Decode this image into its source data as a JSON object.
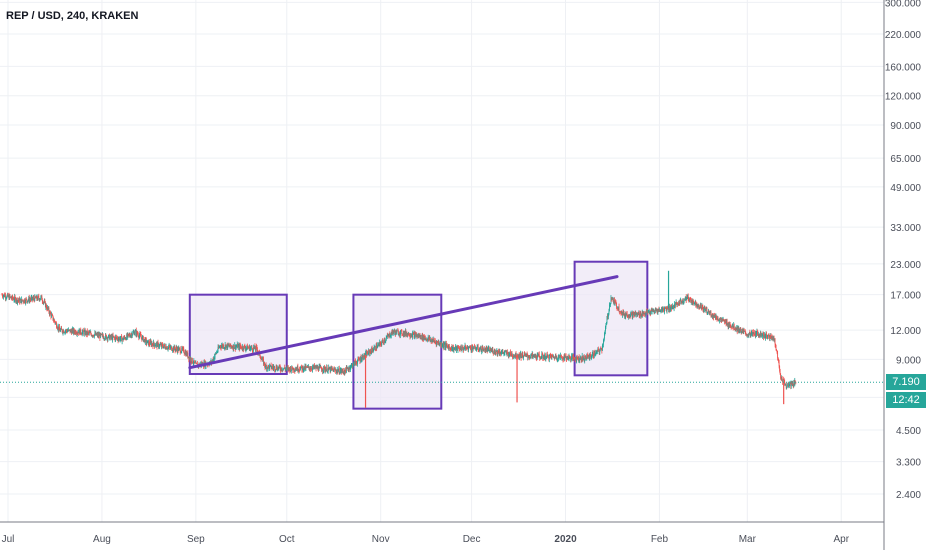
{
  "header": {
    "title": "REP / USD, 240, KRAKEN"
  },
  "price_badge": {
    "value": "7.190",
    "color": "#26a69a"
  },
  "timer_badge": {
    "value": "12:42",
    "color": "#26a69a"
  },
  "chart_data": {
    "type": "candlestick",
    "title": "REP / USD, 240, KRAKEN",
    "y_scale": "log",
    "y_ticks": [
      "300.000",
      "220.000",
      "160.000",
      "120.000",
      "90.000",
      "65.000",
      "49.000",
      "33.000",
      "23.000",
      "17.000",
      "12.000",
      "9.000",
      "6.200",
      "4.500",
      "3.300",
      "2.400"
    ],
    "x_ticks": [
      {
        "date": "2019-07-01",
        "label": "Jul"
      },
      {
        "date": "2019-08-01",
        "label": "Aug"
      },
      {
        "date": "2019-09-01",
        "label": "Sep"
      },
      {
        "date": "2019-10-01",
        "label": "Oct"
      },
      {
        "date": "2019-11-01",
        "label": "Nov"
      },
      {
        "date": "2019-12-01",
        "label": "Dec"
      },
      {
        "date": "2020-01-01",
        "label": "2020"
      },
      {
        "date": "2020-02-01",
        "label": "Feb"
      },
      {
        "date": "2020-03-01",
        "label": "Mar"
      },
      {
        "date": "2020-04-01",
        "label": "Apr"
      }
    ],
    "current_price": 7.19,
    "price_path": [
      [
        "2019-06-29",
        17.0
      ],
      [
        "2019-07-05",
        16.0
      ],
      [
        "2019-07-12",
        16.5
      ],
      [
        "2019-07-18",
        12.0
      ],
      [
        "2019-07-25",
        11.8
      ],
      [
        "2019-08-01",
        11.3
      ],
      [
        "2019-08-08",
        11.0
      ],
      [
        "2019-08-12",
        11.8
      ],
      [
        "2019-08-16",
        10.6
      ],
      [
        "2019-08-22",
        10.2
      ],
      [
        "2019-08-28",
        9.8
      ],
      [
        "2019-09-01",
        8.5
      ],
      [
        "2019-09-06",
        8.7
      ],
      [
        "2019-09-09",
        10.3
      ],
      [
        "2019-09-15",
        10.2
      ],
      [
        "2019-09-21",
        10.0
      ],
      [
        "2019-09-24",
        8.4
      ],
      [
        "2019-10-01",
        8.2
      ],
      [
        "2019-10-10",
        8.3
      ],
      [
        "2019-10-20",
        8.0
      ],
      [
        "2019-10-25",
        9.0
      ],
      [
        "2019-11-01",
        10.5
      ],
      [
        "2019-11-05",
        11.8
      ],
      [
        "2019-11-10",
        11.6
      ],
      [
        "2019-11-15",
        11.2
      ],
      [
        "2019-11-20",
        10.6
      ],
      [
        "2019-11-25",
        10.0
      ],
      [
        "2019-12-01",
        10.1
      ],
      [
        "2019-12-10",
        9.7
      ],
      [
        "2019-12-15",
        9.4
      ],
      [
        "2019-12-20",
        9.3
      ],
      [
        "2019-12-31",
        9.2
      ],
      [
        "2020-01-07",
        9.1
      ],
      [
        "2020-01-10",
        9.4
      ],
      [
        "2020-01-13",
        10.0
      ],
      [
        "2020-01-16",
        16.5
      ],
      [
        "2020-01-20",
        14.0
      ],
      [
        "2020-01-25",
        14.0
      ],
      [
        "2020-01-31",
        14.5
      ],
      [
        "2020-02-05",
        15.0
      ],
      [
        "2020-02-10",
        16.5
      ],
      [
        "2020-02-15",
        15.0
      ],
      [
        "2020-02-20",
        13.5
      ],
      [
        "2020-02-25",
        12.5
      ],
      [
        "2020-03-01",
        11.5
      ],
      [
        "2020-03-05",
        11.6
      ],
      [
        "2020-03-10",
        11.0
      ],
      [
        "2020-03-12",
        7.6
      ],
      [
        "2020-03-14",
        6.9
      ],
      [
        "2020-03-17",
        7.19
      ]
    ],
    "spikes": [
      {
        "date": "2019-10-27",
        "low": 5.6
      },
      {
        "date": "2019-12-16",
        "low": 5.9
      },
      {
        "date": "2020-02-04",
        "high": 21.5
      },
      {
        "date": "2020-03-13",
        "low": 5.8
      }
    ],
    "annotations": {
      "boxes": [
        {
          "start": "2019-08-30",
          "end": "2019-10-01",
          "low": 7.8,
          "high": 17.0
        },
        {
          "start": "2019-10-23",
          "end": "2019-11-21",
          "low": 5.55,
          "high": 17.0
        },
        {
          "start": "2020-01-04",
          "end": "2020-01-28",
          "low": 7.7,
          "high": 23.5
        }
      ],
      "trendline": {
        "start_date": "2019-08-30",
        "start_price": 8.3,
        "end_date": "2020-01-18",
        "end_price": 20.3
      },
      "price_line": 7.19
    },
    "colors": {
      "up": "#26a69a",
      "down": "#ef5350",
      "annotation": "#673ab7",
      "box_fill": "#ede7f6",
      "dotted_line": "#26a69a"
    }
  }
}
